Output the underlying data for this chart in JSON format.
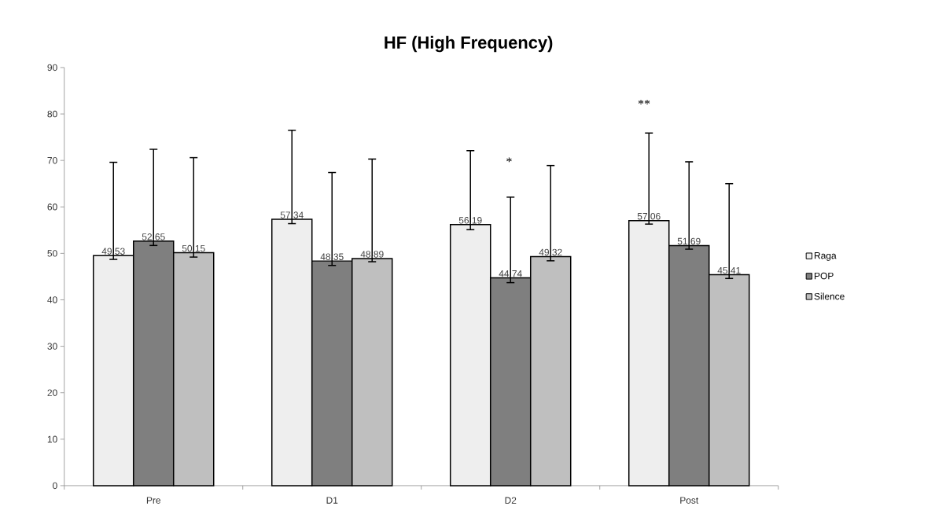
{
  "chart_data": {
    "type": "bar",
    "title": "HF (High Frequency)",
    "categories": [
      "Pre",
      "D1",
      "D2",
      "Post"
    ],
    "series": [
      {
        "name": "Raga",
        "color": "#eeeeee",
        "values": [
          49.53,
          57.34,
          56.19,
          57.06
        ],
        "errors": [
          [
            48.7,
            69.6
          ],
          [
            56.4,
            76.5
          ],
          [
            55.1,
            72.1
          ],
          [
            56.3,
            75.9
          ]
        ]
      },
      {
        "name": "POP",
        "color": "#7f7f7f",
        "values": [
          52.65,
          48.35,
          44.74,
          51.69
        ],
        "errors": [
          [
            51.7,
            72.4
          ],
          [
            47.4,
            67.4
          ],
          [
            43.7,
            62.1
          ],
          [
            50.9,
            69.7
          ]
        ]
      },
      {
        "name": "Silence",
        "color": "#bfbfbf",
        "values": [
          50.15,
          48.89,
          49.32,
          45.41
        ],
        "errors": [
          [
            49.2,
            70.6
          ],
          [
            48.2,
            70.3
          ],
          [
            48.4,
            68.9
          ],
          [
            44.6,
            65.0
          ]
        ]
      }
    ],
    "ylim": [
      0,
      90
    ],
    "yticks": [
      0,
      10,
      20,
      30,
      40,
      50,
      60,
      70,
      80,
      90
    ],
    "data_labels": true,
    "grid": false,
    "legend": "right",
    "annotations": [
      "*",
      "**"
    ]
  }
}
